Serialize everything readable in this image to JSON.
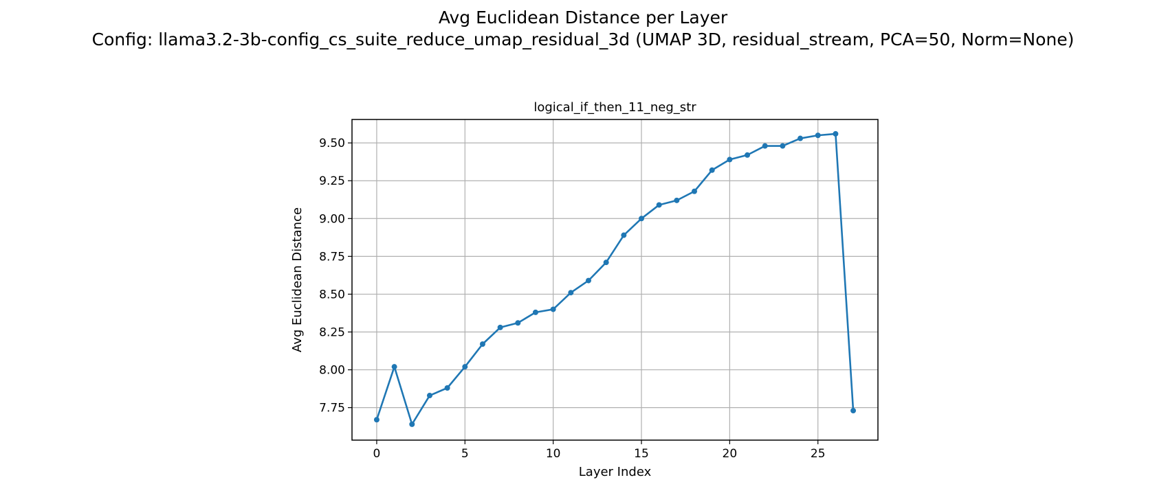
{
  "figure": {
    "suptitle_line1": "Avg Euclidean Distance per Layer",
    "suptitle_line2": "Config: llama3.2-3b-config_cs_suite_reduce_umap_residual_3d (UMAP 3D, residual_stream, PCA=50, Norm=None)"
  },
  "chart_data": {
    "type": "line",
    "title": "logical_if_then_11_neg_str",
    "xlabel": "Layer Index",
    "ylabel": "Avg Euclidean Distance",
    "xlim": [
      -1.4,
      28.4
    ],
    "ylim": [
      7.535,
      9.655
    ],
    "xticks": [
      0,
      5,
      10,
      15,
      20,
      25
    ],
    "xtick_labels": [
      "0",
      "5",
      "10",
      "15",
      "20",
      "25"
    ],
    "yticks": [
      7.75,
      8.0,
      8.25,
      8.5,
      8.75,
      9.0,
      9.25,
      9.5
    ],
    "ytick_labels": [
      "7.75",
      "8.00",
      "8.25",
      "8.50",
      "8.75",
      "9.00",
      "9.25",
      "9.50"
    ],
    "grid": true,
    "line_color": "#1f77b4",
    "marker": "circle",
    "series": [
      {
        "x": [
          0,
          1,
          2,
          3,
          4,
          5,
          6,
          7,
          8,
          9,
          10,
          11,
          12,
          13,
          14,
          15,
          16,
          17,
          18,
          19,
          20,
          21,
          22,
          23,
          24,
          25,
          26,
          27
        ],
        "values": [
          7.67,
          8.02,
          7.64,
          7.83,
          7.88,
          8.02,
          8.17,
          8.28,
          8.31,
          8.38,
          8.4,
          8.51,
          8.59,
          8.71,
          8.89,
          9.0,
          9.09,
          9.12,
          9.18,
          9.32,
          9.39,
          9.42,
          9.48,
          9.48,
          9.53,
          9.55,
          9.56,
          7.73
        ]
      }
    ]
  }
}
